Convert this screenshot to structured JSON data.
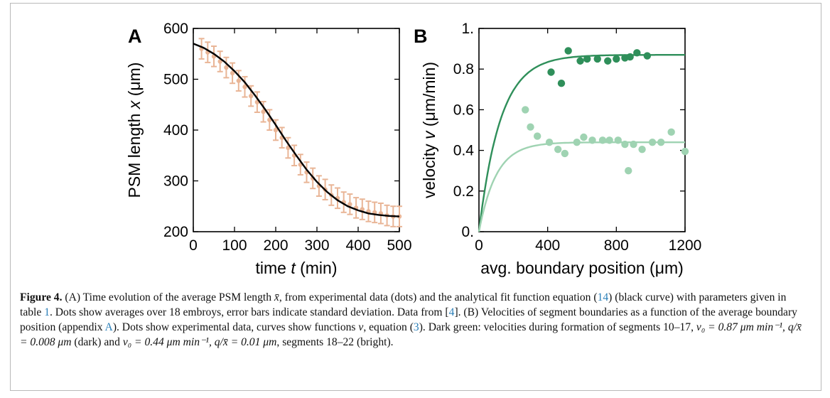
{
  "chart_data": [
    {
      "type": "scatter",
      "panel_label": "A",
      "xlabel_prefix": "time ",
      "xlabel_var": "t",
      "xlabel_suffix": " (min)",
      "ylabel_prefix": "PSM length ",
      "ylabel_var": "x",
      "ylabel_suffix": " (μm)",
      "xlim": [
        0,
        500
      ],
      "ylim": [
        200,
        600
      ],
      "xticks": [
        0,
        100,
        200,
        300,
        400,
        500
      ],
      "yticks": [
        200,
        300,
        400,
        500,
        600
      ],
      "xtick_labels": [
        "0",
        "100",
        "200",
        "300",
        "400",
        "500"
      ],
      "ytick_labels": [
        "200",
        "300",
        "400",
        "500",
        "600"
      ],
      "points_color": "#e9b596",
      "curve_color": "#000000",
      "error_bar": 20,
      "points": [
        [
          20,
          560
        ],
        [
          35,
          553
        ],
        [
          50,
          545
        ],
        [
          65,
          535
        ],
        [
          80,
          523
        ],
        [
          95,
          512
        ],
        [
          110,
          497
        ],
        [
          125,
          485
        ],
        [
          140,
          467
        ],
        [
          155,
          455
        ],
        [
          170,
          436
        ],
        [
          185,
          420
        ],
        [
          200,
          400
        ],
        [
          215,
          385
        ],
        [
          230,
          365
        ],
        [
          245,
          350
        ],
        [
          260,
          332
        ],
        [
          275,
          317
        ],
        [
          290,
          305
        ],
        [
          305,
          290
        ],
        [
          320,
          283
        ],
        [
          335,
          272
        ],
        [
          350,
          266
        ],
        [
          365,
          258
        ],
        [
          380,
          254
        ],
        [
          395,
          247
        ],
        [
          410,
          244
        ],
        [
          425,
          240
        ],
        [
          440,
          238
        ],
        [
          455,
          236
        ],
        [
          470,
          232
        ],
        [
          485,
          230
        ],
        [
          500,
          230
        ]
      ],
      "curve": [
        [
          0,
          570
        ],
        [
          25,
          562
        ],
        [
          50,
          550
        ],
        [
          75,
          535
        ],
        [
          100,
          516
        ],
        [
          125,
          494
        ],
        [
          150,
          468
        ],
        [
          175,
          440
        ],
        [
          200,
          410
        ],
        [
          225,
          379
        ],
        [
          250,
          350
        ],
        [
          275,
          322
        ],
        [
          300,
          298
        ],
        [
          325,
          278
        ],
        [
          350,
          262
        ],
        [
          375,
          250
        ],
        [
          400,
          242
        ],
        [
          425,
          236
        ],
        [
          450,
          233
        ],
        [
          475,
          231
        ],
        [
          500,
          230
        ]
      ]
    },
    {
      "type": "scatter",
      "panel_label": "B",
      "xlabel": "avg. boundary position (μm)",
      "ylabel_prefix": "velocity ",
      "ylabel_var": "v",
      "ylabel_suffix": " (μm/min)",
      "xlim": [
        0,
        1200
      ],
      "ylim": [
        0,
        1
      ],
      "xticks": [
        0,
        400,
        800,
        1200
      ],
      "yticks": [
        0,
        0.2,
        0.4,
        0.6,
        0.8,
        1.0
      ],
      "xtick_labels": [
        "0",
        "400",
        "800",
        "1200"
      ],
      "ytick_labels": [
        "0.",
        "0.2",
        "0.4",
        "0.6",
        "0.8",
        "1."
      ],
      "series": [
        {
          "color": "#2f8f5a",
          "v0": 0.87,
          "rate": 0.008,
          "points": [
            [
              420,
              0.785
            ],
            [
              520,
              0.89
            ],
            [
              480,
              0.73
            ],
            [
              590,
              0.84
            ],
            [
              630,
              0.85
            ],
            [
              690,
              0.85
            ],
            [
              750,
              0.84
            ],
            [
              800,
              0.85
            ],
            [
              850,
              0.855
            ],
            [
              880,
              0.86
            ],
            [
              920,
              0.88
            ],
            [
              980,
              0.865
            ]
          ]
        },
        {
          "color": "#9fd3b2",
          "v0": 0.44,
          "rate": 0.01,
          "points": [
            [
              270,
              0.6
            ],
            [
              300,
              0.515
            ],
            [
              340,
              0.47
            ],
            [
              410,
              0.44
            ],
            [
              460,
              0.405
            ],
            [
              500,
              0.385
            ],
            [
              570,
              0.44
            ],
            [
              610,
              0.465
            ],
            [
              660,
              0.45
            ],
            [
              720,
              0.45
            ],
            [
              760,
              0.45
            ],
            [
              810,
              0.45
            ],
            [
              850,
              0.43
            ],
            [
              870,
              0.3
            ],
            [
              900,
              0.43
            ],
            [
              950,
              0.405
            ],
            [
              1010,
              0.44
            ],
            [
              1060,
              0.44
            ],
            [
              1120,
              0.49
            ],
            [
              1200,
              0.395
            ]
          ]
        }
      ]
    }
  ],
  "caption": {
    "label": "Figure 4.",
    "parts": [
      " (A) Time evolution of the average PSM length ",
      "x̄",
      ", from experimental data (dots) and the analytical fit function equation (",
      "14",
      ") (black curve) with parameters given in table ",
      "1",
      ". Dots show averages over 18 embroys, error bars indicate standard deviation. Data from [",
      "4",
      "]. (B) Velocities of segment boundaries as a function of the average boundary position (appendix ",
      "A",
      "). Dots show experimental data, curves show functions ",
      "v",
      ", equation (",
      "3",
      "). Dark green: velocities during formation of segments 10–17, ",
      "v₀ = 0.87 μm min⁻¹, q/x̄ = 0.008 μm",
      " (dark) and ",
      "v₀ = 0.44 μm min⁻¹, q/x̄ = 0.01 μm",
      ", segments 18–22 (bright)."
    ]
  }
}
